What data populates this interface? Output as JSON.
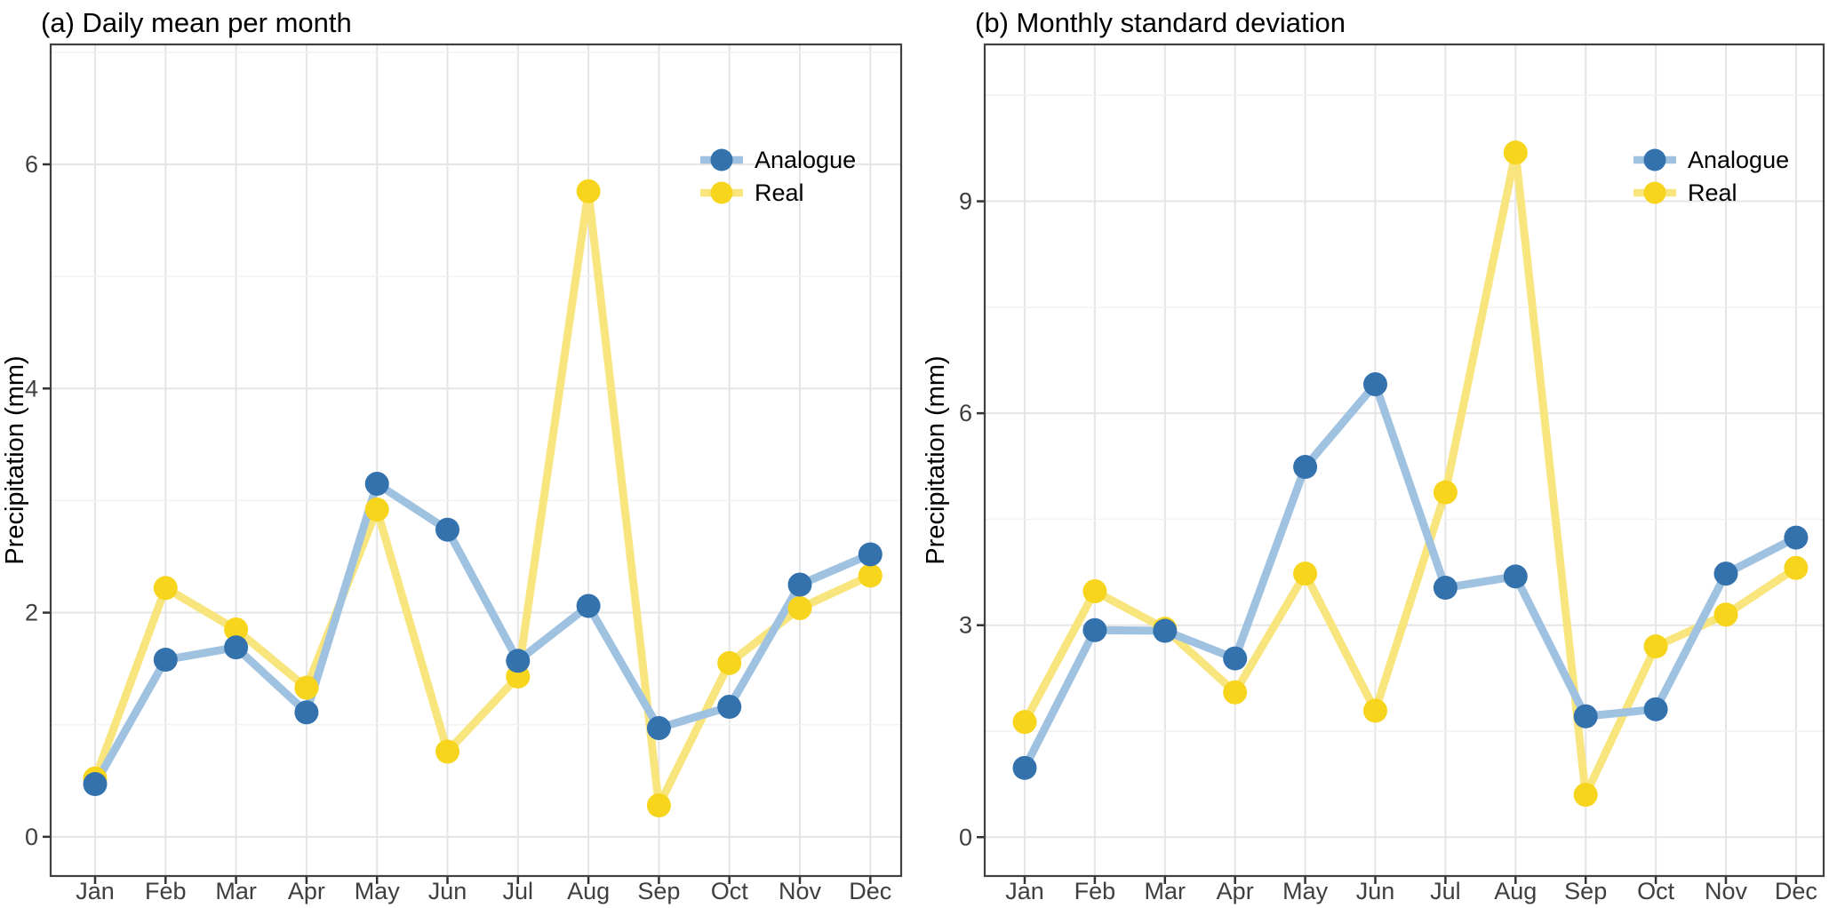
{
  "figure": {
    "months": [
      "Jan",
      "Feb",
      "Mar",
      "Apr",
      "May",
      "Jun",
      "Jul",
      "Aug",
      "Sep",
      "Oct",
      "Nov",
      "Dec"
    ],
    "legend_labels": [
      "Analogue",
      "Real"
    ],
    "colors": {
      "analogue_point": "#3472AE",
      "analogue_line": "#A0C2E1",
      "real_point": "#F7D51D",
      "real_line": "#F9E57E",
      "grid_major": "#E5E5E5",
      "grid_minor": "#F2F2F2",
      "panel_border": "#404040",
      "tick_mark": "#333333",
      "tick_label": "#3F3F3F",
      "title_text": "#000000"
    }
  },
  "chart_data": [
    {
      "type": "line",
      "panel": "a",
      "title": "(a) Daily mean per month",
      "xlabel": "",
      "ylabel": "Precipitation (mm)",
      "categories": [
        "Jan",
        "Feb",
        "Mar",
        "Apr",
        "May",
        "Jun",
        "Jul",
        "Aug",
        "Sep",
        "Oct",
        "Nov",
        "Dec"
      ],
      "series": [
        {
          "name": "Analogue",
          "values": [
            0.47,
            1.58,
            1.69,
            1.11,
            3.15,
            2.74,
            1.57,
            2.06,
            0.97,
            1.16,
            2.25,
            2.52
          ]
        },
        {
          "name": "Real",
          "values": [
            0.52,
            2.22,
            1.85,
            1.33,
            2.92,
            0.76,
            1.43,
            5.76,
            0.28,
            1.55,
            2.04,
            2.33
          ]
        }
      ],
      "y_ticks": [
        0,
        2,
        4,
        6
      ],
      "ylim": [
        -0.35,
        7.07
      ],
      "grid": true,
      "legend_position": "inside-top-right",
      "legend_labels": [
        "Analogue",
        "Real"
      ]
    },
    {
      "type": "line",
      "panel": "b",
      "title": "(b) Monthly standard deviation",
      "xlabel": "",
      "ylabel": "Precipitation (mm)",
      "categories": [
        "Jan",
        "Feb",
        "Mar",
        "Apr",
        "May",
        "Jun",
        "Jul",
        "Aug",
        "Sep",
        "Oct",
        "Nov",
        "Dec"
      ],
      "series": [
        {
          "name": "Analogue",
          "values": [
            0.98,
            2.93,
            2.92,
            2.53,
            5.24,
            6.41,
            3.53,
            3.69,
            1.71,
            1.81,
            3.73,
            4.24
          ]
        },
        {
          "name": "Real",
          "values": [
            1.63,
            3.48,
            2.95,
            2.05,
            3.73,
            1.79,
            4.88,
            9.69,
            0.6,
            2.7,
            3.15,
            3.81
          ]
        }
      ],
      "y_ticks": [
        0,
        3,
        6,
        9
      ],
      "ylim": [
        -0.55,
        11.22
      ],
      "grid": true,
      "legend_position": "inside-top-right",
      "legend_labels": [
        "Analogue",
        "Real"
      ]
    }
  ]
}
